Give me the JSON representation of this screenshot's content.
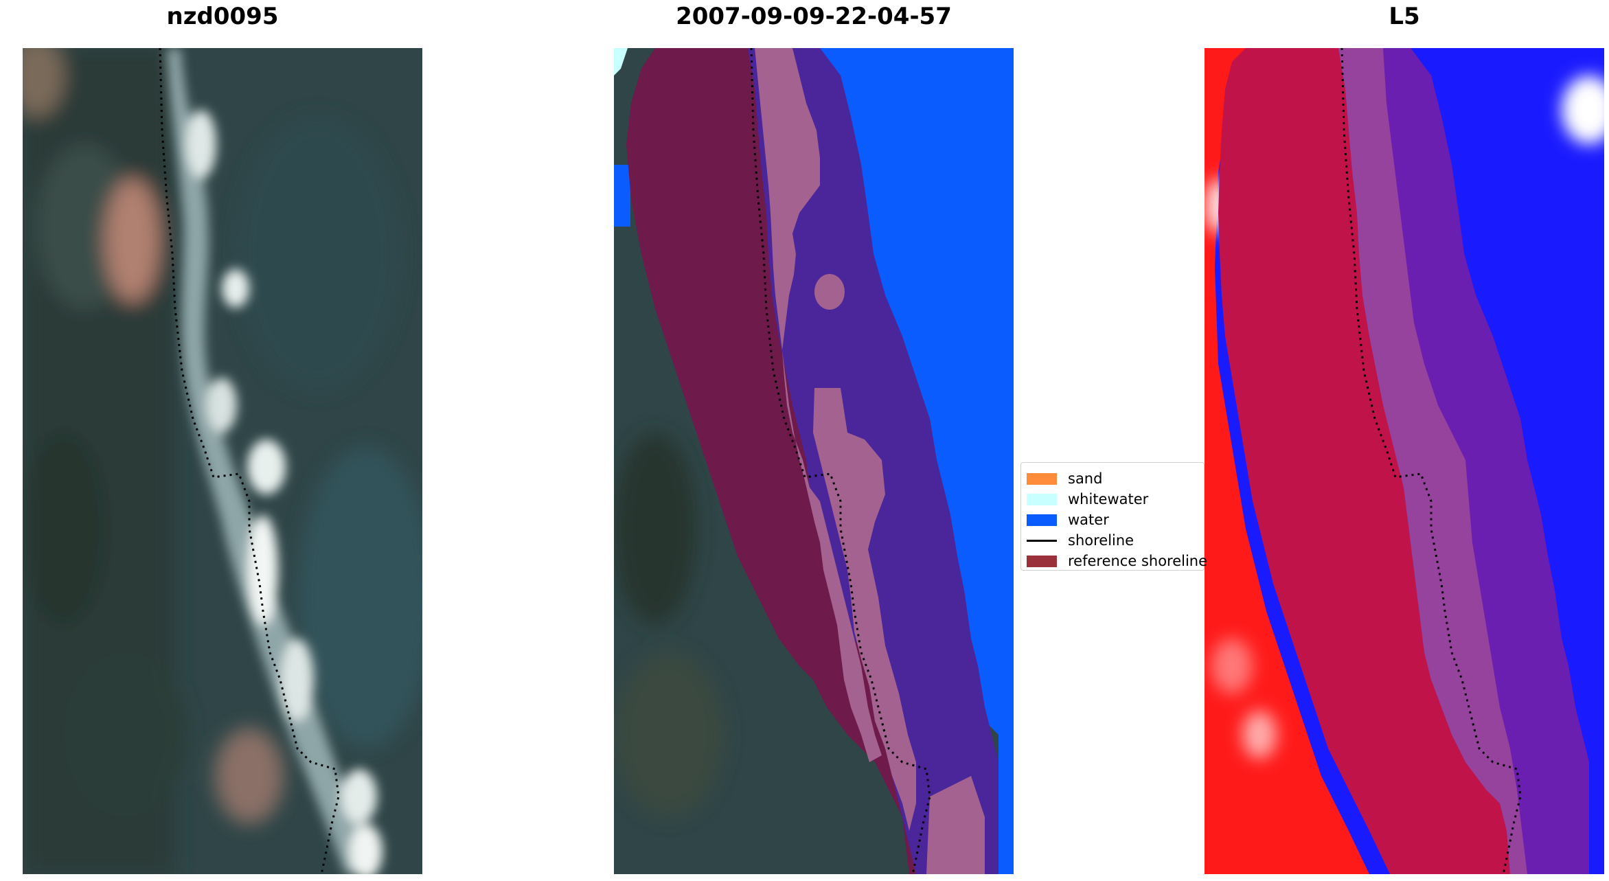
{
  "panels": [
    {
      "title": "nzd0095"
    },
    {
      "title": "2007-09-09-22-04-57"
    },
    {
      "title": "L5"
    }
  ],
  "legend": {
    "items": [
      {
        "label": "sand",
        "color": "#ff8c3a",
        "kind": "patch"
      },
      {
        "label": "whitewater",
        "color": "#c8ffff",
        "kind": "patch"
      },
      {
        "label": "water",
        "color": "#0a5cff",
        "kind": "patch"
      },
      {
        "label": "shoreline",
        "color": "#000000",
        "kind": "line"
      },
      {
        "label": "reference shoreline",
        "color": "#99303a",
        "kind": "patch"
      }
    ]
  },
  "colors": {
    "land_dark": "#2e4446",
    "buffer_maroon": "#6e1a4a",
    "water_class": "#0a5cff",
    "buffer_water": "#4b259a",
    "whitewater_buffer": "#a36290",
    "ndwi_red": "#ff1a1a",
    "ndwi_blue": "#1a1aff"
  }
}
